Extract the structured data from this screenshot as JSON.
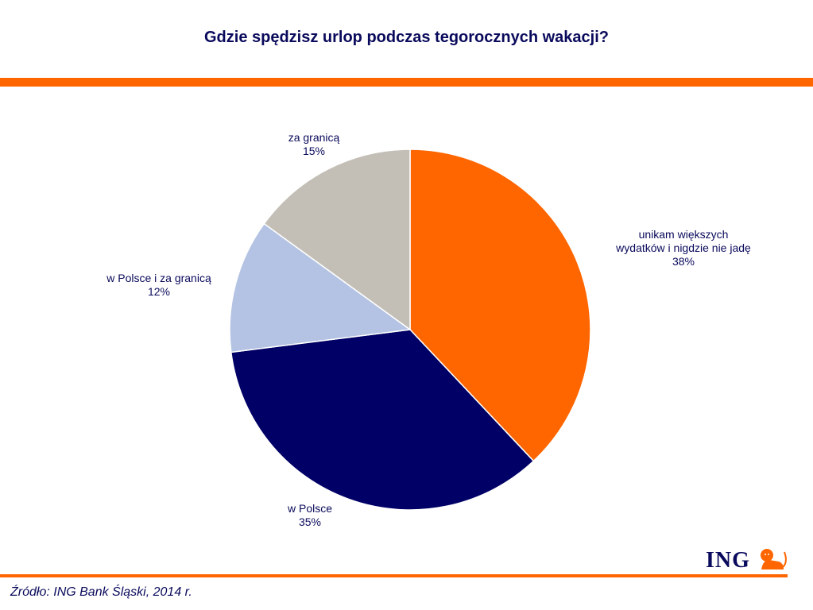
{
  "chart_data": {
    "type": "pie",
    "title": "Gdzie spędzisz urlop podczas tegorocznych wakacji?",
    "start": "top, clockwise",
    "slices": [
      {
        "label_lines": [
          "unikam większych",
          "wydatków i nigdzie nie jadę"
        ],
        "value": 38,
        "value_label": "38%",
        "color": "#ff6600"
      },
      {
        "label_lines": [
          "w Polsce"
        ],
        "value": 35,
        "value_label": "35%",
        "color": "#000066"
      },
      {
        "label_lines": [
          "w Polsce i za granicą"
        ],
        "value": 12,
        "value_label": "12%",
        "color": "#b4c3e3"
      },
      {
        "label_lines": [
          "za granicą"
        ],
        "value": 15,
        "value_label": "15%",
        "color": "#c3bfb6"
      }
    ]
  },
  "footer": {
    "source": "Źródło: ING Bank Śląski, 2014 r.",
    "logo": "ING"
  }
}
